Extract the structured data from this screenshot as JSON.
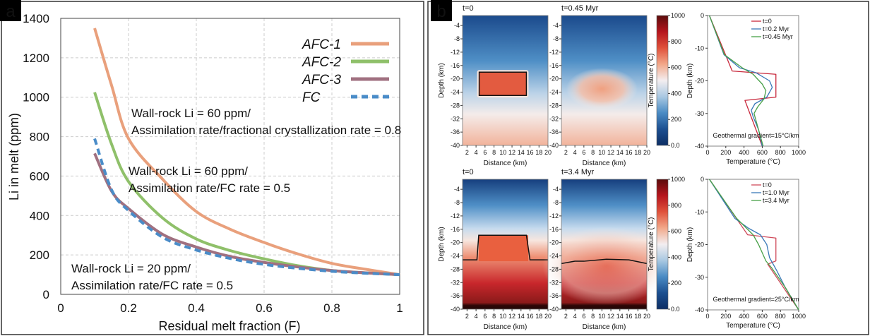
{
  "panel_labels": {
    "a": "a",
    "b": "b"
  },
  "chart_data": [
    {
      "type": "line",
      "panel": "a",
      "xlabel": "Residual melt fraction (F)",
      "ylabel": "Li in melt (ppm)",
      "xlim": [
        0,
        1
      ],
      "ylim": [
        0,
        1400
      ],
      "xticks": [
        "0",
        "0.2",
        "0.4",
        "0.6",
        "0.8",
        "1"
      ],
      "yticks": [
        "0",
        "200",
        "400",
        "600",
        "800",
        "1000",
        "1200",
        "1400"
      ],
      "grid": true,
      "legend": "top-right",
      "x": [
        0.1,
        0.15,
        0.2,
        0.3,
        0.4,
        0.5,
        0.6,
        0.7,
        0.8,
        0.9,
        1.0
      ],
      "series": [
        {
          "name": "AFC-1",
          "color": "#e9a07c",
          "dash": false,
          "values": [
            1350,
            1060,
            790,
            585,
            420,
            330,
            263,
            205,
            157,
            127,
            100
          ]
        },
        {
          "name": "AFC-2",
          "color": "#8fc06a",
          "dash": false,
          "values": [
            1025,
            762,
            572,
            388,
            281,
            222,
            180,
            145,
            121,
            109,
            100
          ]
        },
        {
          "name": "AFC-3",
          "color": "#a07080",
          "dash": false,
          "values": [
            715,
            524,
            435,
            305,
            240,
            192,
            162,
            139,
            121,
            109,
            100
          ]
        },
        {
          "name": "FC",
          "color": "#4a8cc8",
          "dash": true,
          "values": [
            790,
            530,
            425,
            290,
            225,
            182,
            152,
            132,
            117,
            107,
            100
          ]
        }
      ],
      "annotations": [
        {
          "color": "#e9a07c",
          "lines": [
            "Wall-rock Li = 60 ppm/",
            "Assimilation rate/fractional crystallization rate = 0.8"
          ]
        },
        {
          "color": "#8fc06a",
          "lines": [
            "Wall-rock Li = 60 ppm/",
            "Assimilation rate/FC rate = 0.5"
          ]
        },
        {
          "color": "#a07080",
          "lines": [
            "Wall-rock Li = 20 ppm/",
            "Assimilation rate/FC rate = 0.5"
          ]
        }
      ]
    },
    {
      "type": "heatmap",
      "panel": "b",
      "title": "t=0",
      "xlabel": "Distance (km)",
      "ylabel": "Depth (km)",
      "xlim": [
        1,
        20
      ],
      "ylim": [
        -40,
        -1
      ],
      "xticks": [
        "2",
        "4",
        "6",
        "8",
        "10",
        "12",
        "14",
        "16",
        "18",
        "20"
      ],
      "yticks": [
        "-4",
        "-8",
        "-12",
        "-16",
        "-20",
        "-24",
        "-28",
        "-32",
        "-36",
        "-40"
      ],
      "geothermal_gradient_c_per_km": 15,
      "intrusion": {
        "x_km": [
          4.7,
          15.2
        ],
        "depth_km": [
          -18,
          -25
        ],
        "temperature_c": 750
      }
    },
    {
      "type": "heatmap",
      "panel": "b",
      "title": "t=0.45 Myr",
      "xlabel": "Distance (km)",
      "ylabel": "",
      "xlim": [
        1,
        20
      ],
      "ylim": [
        -40,
        -1
      ],
      "xticks": [
        "2",
        "4",
        "6",
        "8",
        "10",
        "12",
        "14",
        "16",
        "18",
        "20"
      ],
      "yticks": [
        "-4",
        "-8",
        "-12",
        "-16",
        "-20",
        "-24",
        "-28",
        "-32",
        "-36",
        "-40"
      ],
      "geothermal_gradient_c_per_km": 15,
      "hot_zone": {
        "center_km": [
          10,
          -23
        ],
        "peak_temperature_c": 640
      }
    },
    {
      "type": "heatmap",
      "panel": "b",
      "title": "t=0",
      "xlabel": "Distance (km)",
      "ylabel": "Depth (km)",
      "xlim": [
        1,
        20
      ],
      "ylim": [
        -40,
        -1
      ],
      "xticks": [
        "2",
        "4",
        "6",
        "8",
        "10",
        "12",
        "14",
        "16",
        "18",
        "20"
      ],
      "yticks": [
        "-4",
        "-8",
        "-12",
        "-16",
        "-20",
        "-24",
        "-28",
        "-32",
        "-36",
        "-40"
      ],
      "geothermal_gradient_c_per_km": 25,
      "contour": [
        [
          1,
          -25.2
        ],
        [
          4.2,
          -25.2
        ],
        [
          4.6,
          -17.8
        ],
        [
          15.2,
          -17.8
        ],
        [
          16,
          -25.2
        ],
        [
          20,
          -25.2
        ]
      ]
    },
    {
      "type": "heatmap",
      "panel": "b",
      "title": "t=3.4 Myr",
      "xlabel": "Distance (km)",
      "ylabel": "",
      "xlim": [
        1,
        20
      ],
      "ylim": [
        -40,
        -1
      ],
      "xticks": [
        "2",
        "4",
        "6",
        "8",
        "10",
        "12",
        "14",
        "16",
        "18",
        "20"
      ],
      "yticks": [
        "-4",
        "-8",
        "-12",
        "-16",
        "-20",
        "-24",
        "-28",
        "-32",
        "-36",
        "-40"
      ],
      "geothermal_gradient_c_per_km": 25,
      "contour": [
        [
          1,
          -26.3
        ],
        [
          4,
          -25.6
        ],
        [
          6,
          -25.6
        ],
        [
          11,
          -25
        ],
        [
          16,
          -25.2
        ],
        [
          20,
          -26.3
        ]
      ]
    },
    {
      "type": "colorbar",
      "label": "Temperature (°C)",
      "range": [
        0,
        1000
      ],
      "ticks": [
        "0.0",
        "200",
        "400",
        "600",
        "800",
        "1000"
      ],
      "colors": [
        "#5a0c0c",
        "#b5151d",
        "#e0523b",
        "#f2a88a",
        "#f3eef0",
        "#a9c8e2",
        "#4a8bc4",
        "#1c4f90",
        "#0d2e64"
      ]
    },
    {
      "type": "line",
      "panel": "b",
      "xlabel": "Temperature (°C)",
      "ylabel": "Depth (km)",
      "xlim": [
        0,
        1000
      ],
      "ylim": [
        -40,
        0
      ],
      "xticks": [
        "0",
        "200",
        "400",
        "600",
        "800",
        "1000"
      ],
      "yticks": [
        "0",
        "-10",
        "-20",
        "-30",
        "-40"
      ],
      "legend": "top-right",
      "annotation": "Geothermal gradient=15°C/km",
      "series": [
        {
          "name": "t=0",
          "color": "#c8283c",
          "points": [
            [
              20,
              0
            ],
            [
              270,
              -17
            ],
            [
              750,
              -18
            ],
            [
              750,
              -25
            ],
            [
              410,
              -26
            ],
            [
              600,
              -40
            ]
          ]
        },
        {
          "name": "t=0.2 Myr",
          "color": "#3a78b8",
          "points": [
            [
              20,
              0
            ],
            [
              180,
              -12
            ],
            [
              350,
              -16
            ],
            [
              530,
              -17.5
            ],
            [
              680,
              -20
            ],
            [
              710,
              -22
            ],
            [
              650,
              -25
            ],
            [
              520,
              -27
            ],
            [
              480,
              -29
            ],
            [
              500,
              -31
            ],
            [
              560,
              -35
            ],
            [
              600,
              -40
            ]
          ]
        },
        {
          "name": "t=0.45 Myr",
          "color": "#48a048",
          "points": [
            [
              20,
              0
            ],
            [
              185,
              -12
            ],
            [
              380,
              -16
            ],
            [
              500,
              -18
            ],
            [
              600,
              -21
            ],
            [
              640,
              -23
            ],
            [
              620,
              -25.5
            ],
            [
              550,
              -28
            ],
            [
              510,
              -30
            ],
            [
              540,
              -33
            ],
            [
              610,
              -40
            ]
          ]
        }
      ]
    },
    {
      "type": "line",
      "panel": "b",
      "xlabel": "Temperature (°C)",
      "ylabel": "Depth (km)",
      "xlim": [
        0,
        1000
      ],
      "ylim": [
        -40,
        0
      ],
      "xticks": [
        "0",
        "200",
        "400",
        "600",
        "800",
        "1000"
      ],
      "yticks": [
        "0",
        "-10",
        "-20",
        "-30",
        "-40"
      ],
      "legend": "top-right",
      "annotation": "Geothermal gradient=25°C/km",
      "series": [
        {
          "name": "t=0",
          "color": "#d04a5a",
          "points": [
            [
              20,
              0
            ],
            [
              440,
              -17
            ],
            [
              750,
              -18
            ],
            [
              750,
              -25
            ],
            [
              660,
              -26
            ],
            [
              1000,
              -40
            ]
          ]
        },
        {
          "name": "t=1.0 Myr",
          "color": "#3a78b8",
          "points": [
            [
              20,
              0
            ],
            [
              300,
              -12
            ],
            [
              450,
              -15
            ],
            [
              580,
              -17
            ],
            [
              650,
              -20
            ],
            [
              680,
              -24
            ],
            [
              760,
              -28
            ],
            [
              850,
              -33
            ],
            [
              1000,
              -40
            ]
          ]
        },
        {
          "name": "t=3.4 Myr",
          "color": "#48a048",
          "points": [
            [
              20,
              0
            ],
            [
              320,
              -12
            ],
            [
              500,
              -17
            ],
            [
              560,
              -20
            ],
            [
              640,
              -25
            ],
            [
              700,
              -27
            ],
            [
              850,
              -33
            ],
            [
              1000,
              -40
            ]
          ]
        }
      ]
    }
  ]
}
